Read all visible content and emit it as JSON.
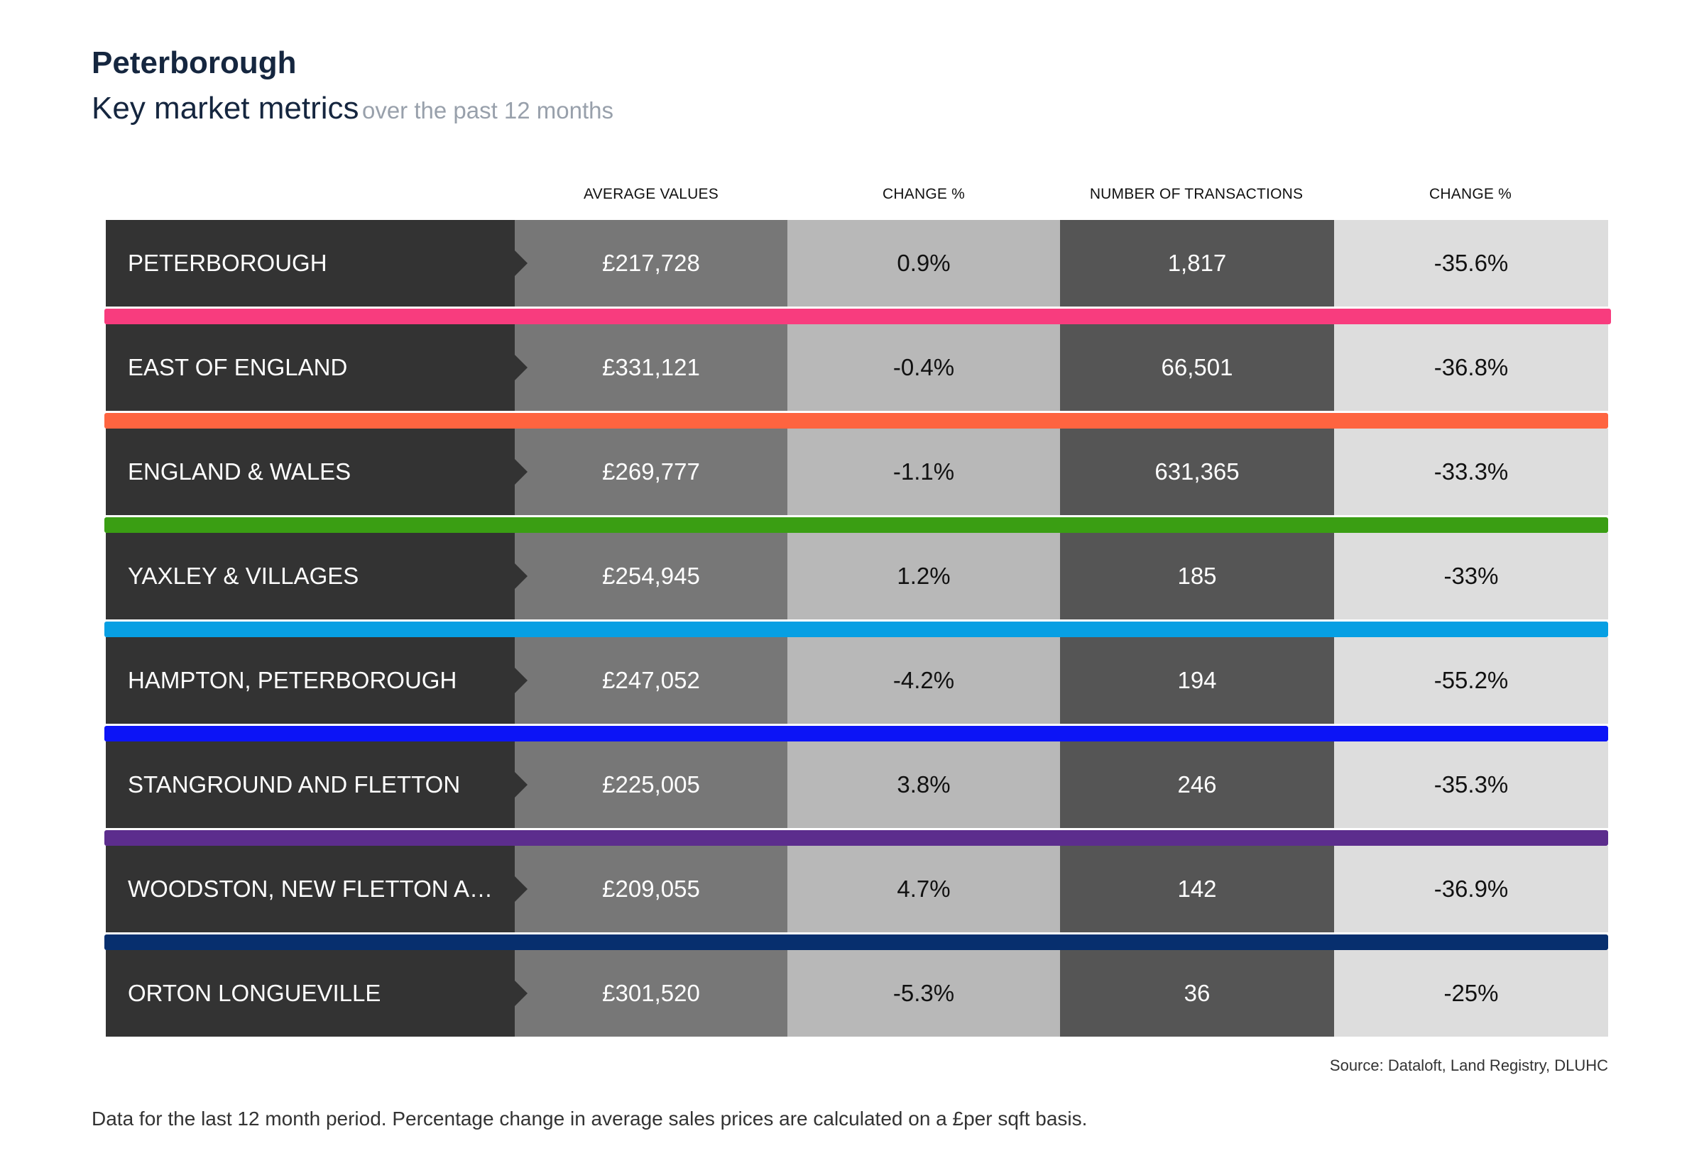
{
  "header": {
    "title": "Peterborough",
    "subtitle_main": "Key market metrics",
    "subtitle_muted": "over the past 12 months"
  },
  "chart_data": {
    "type": "table",
    "columns": [
      "",
      "AVERAGE VALUES",
      "CHANGE %",
      "NUMBER OF TRANSACTIONS",
      "CHANGE %"
    ],
    "rows": [
      {
        "name": "PETERBOROUGH",
        "average_value": "£217,728",
        "value_change": "0.9%",
        "transactions": "1,817",
        "transactions_change": "-35.6%",
        "color": "#f83c7e"
      },
      {
        "name": "EAST OF ENGLAND",
        "average_value": "£331,121",
        "value_change": "-0.4%",
        "transactions": "66,501",
        "transactions_change": "-36.8%",
        "color": "#fe6440"
      },
      {
        "name": "ENGLAND & WALES",
        "average_value": "£269,777",
        "value_change": "-1.1%",
        "transactions": "631,365",
        "transactions_change": "-33.3%",
        "color": "#3a9e13"
      },
      {
        "name": "YAXLEY & VILLAGES",
        "average_value": "£254,945",
        "value_change": "1.2%",
        "transactions": "185",
        "transactions_change": "-33%",
        "color": "#079fe3"
      },
      {
        "name": "HAMPTON, PETERBOROUGH",
        "average_value": "£247,052",
        "value_change": "-4.2%",
        "transactions": "194",
        "transactions_change": "-55.2%",
        "color": "#0c14f6"
      },
      {
        "name": "STANGROUND AND FLETTON",
        "average_value": "£225,005",
        "value_change": "3.8%",
        "transactions": "246",
        "transactions_change": "-35.3%",
        "color": "#5c2d8d"
      },
      {
        "name": "WOODSTON, NEW FLETTON AND H...",
        "average_value": "£209,055",
        "value_change": "4.7%",
        "transactions": "142",
        "transactions_change": "-36.9%",
        "color": "#072f6e"
      },
      {
        "name": "ORTON LONGUEVILLE",
        "average_value": "£301,520",
        "value_change": "-5.3%",
        "transactions": "36",
        "transactions_change": "-25%",
        "color": ""
      }
    ]
  },
  "source": "Source: Dataloft, Land Registry, DLUHC",
  "footnote": "Data for the last 12 month period. Percentage change in average sales prices are calculated on a £per sqft basis."
}
